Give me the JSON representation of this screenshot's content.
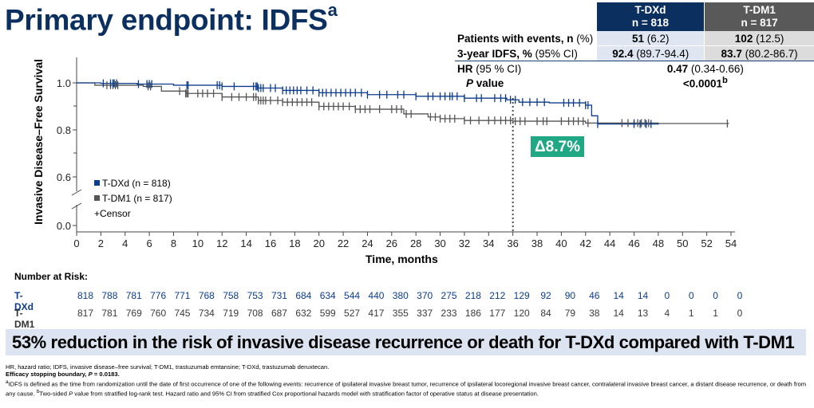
{
  "title": "Primary endpoint: IDFS",
  "title_sup": "a",
  "summary_table": {
    "columns": [
      {
        "name": "T-DXd",
        "n": "n = 818",
        "color": "#0b2f5f"
      },
      {
        "name": "T-DM1",
        "n": "n = 817",
        "color": "#595959"
      }
    ],
    "rows": {
      "events": {
        "label_bold": "Patients with events, n",
        "label_rest": " (%)",
        "dxd_bold": "51",
        "dxd_rest": " (6.2)",
        "dm1_bold": "102",
        "dm1_rest": " (12.5)"
      },
      "idfs3": {
        "label_bold": "3-year IDFS, %",
        "label_rest": " (95% CI)",
        "dxd_bold": "92.4",
        "dxd_rest": " (89.7-94.4)",
        "dm1_bold": "83.7",
        "dm1_rest": " (80.2-86.7)"
      },
      "hr": {
        "label_bold": "HR",
        "label_rest": " (95 % CI)",
        "value_bold": "0.47",
        "value_rest": " (0.34-0.66)"
      },
      "pvalue": {
        "label_italic": "P",
        "label_rest": " value",
        "value": "<0.0001",
        "value_sup": "b"
      }
    }
  },
  "chart_data": {
    "type": "line",
    "title": "",
    "xlabel": "Time, months",
    "ylabel": "Invasive Disease–Free Survival",
    "xlim": [
      0,
      54
    ],
    "ylim": [
      0.5,
      1.1
    ],
    "y_axis_break": true,
    "xticks": [
      0,
      2,
      4,
      6,
      8,
      10,
      12,
      14,
      16,
      18,
      20,
      22,
      24,
      26,
      28,
      30,
      32,
      34,
      36,
      38,
      40,
      42,
      44,
      46,
      48,
      50,
      52,
      54
    ],
    "yticks": [
      "0.0",
      "0.6",
      "0.8",
      "1.0"
    ],
    "legend": {
      "position": "bottom-left",
      "entries": [
        "T-DXd (n = 818)",
        "T-DM1 (n = 817)",
        "+Censor"
      ]
    },
    "series": [
      {
        "name": "T-DXd",
        "color": "#0b3d8c",
        "x": [
          0,
          2,
          5,
          8,
          12,
          15,
          17,
          20,
          24,
          28,
          32,
          35.5,
          36.5,
          39,
          42,
          42.5,
          43,
          48
        ],
        "y": [
          1.0,
          0.998,
          0.995,
          0.99,
          0.985,
          0.978,
          0.968,
          0.958,
          0.95,
          0.943,
          0.935,
          0.928,
          0.918,
          0.915,
          0.905,
          0.86,
          0.825,
          0.823
        ],
        "censor_x": [
          2.2,
          2.8,
          3,
          3.1,
          3.3,
          5.1,
          5.8,
          6,
          6.2,
          9.1,
          9.2,
          11.6,
          11.8,
          12,
          13,
          14.6,
          14.8,
          14.9,
          15,
          15.2,
          15.4,
          16,
          16.4,
          17,
          17.3,
          17.6,
          17.9,
          18.2,
          18.5,
          19,
          19.5,
          20,
          20.3,
          20.6,
          21,
          21.4,
          21.8,
          22.2,
          22.6,
          23,
          23.5,
          24,
          25,
          25.6,
          26.5,
          27,
          28,
          29,
          29.4,
          30,
          30.4,
          30.8,
          31,
          31.4,
          32,
          33,
          33.4,
          34.5,
          35,
          35.4,
          35.8,
          36.2,
          36.8,
          37.4,
          38,
          38.6,
          40.2,
          40.6,
          41,
          41.5,
          42,
          42.2,
          43,
          46,
          46.5,
          47,
          47.4
        ],
        "risk": [
          818,
          788,
          781,
          776,
          771,
          768,
          758,
          753,
          731,
          684,
          634,
          544,
          440,
          380,
          370,
          275,
          218,
          212,
          129,
          92,
          90,
          46,
          14,
          14,
          0,
          0,
          0,
          0
        ]
      },
      {
        "name": "T-DM1",
        "color": "#555555",
        "x": [
          0,
          1.5,
          5.5,
          7,
          9,
          12,
          15,
          17,
          20,
          23,
          27,
          29,
          30,
          32,
          36,
          42,
          48,
          53.8
        ],
        "y": [
          1.0,
          0.99,
          0.985,
          0.965,
          0.955,
          0.94,
          0.925,
          0.918,
          0.9,
          0.888,
          0.868,
          0.855,
          0.848,
          0.84,
          0.837,
          0.829,
          0.827,
          0.826
        ],
        "censor_x": [
          2.5,
          2.8,
          3,
          3.2,
          3.4,
          5.9,
          6.1,
          8.5,
          9,
          9.1,
          9.2,
          10,
          10.4,
          10.8,
          11.3,
          12,
          12.8,
          13.4,
          14,
          14.6,
          14.8,
          15,
          15.2,
          15.4,
          15.6,
          16,
          16.6,
          17,
          17.4,
          17.8,
          18.2,
          18.6,
          19,
          19.4,
          20,
          20.4,
          20.8,
          21.2,
          21.6,
          22,
          22.5,
          23,
          23.4,
          23.8,
          24.2,
          25,
          26,
          26.4,
          26.8,
          27.2,
          27.6,
          29.2,
          29.6,
          30,
          30.4,
          30.8,
          31.2,
          32,
          32.5,
          33.2,
          34,
          34.5,
          35,
          35.4,
          35.8,
          36.2,
          36.6,
          37,
          38,
          38.5,
          38.8,
          40,
          40.6,
          41,
          41.4,
          41.8,
          42.2,
          45,
          45.5,
          46,
          46.3,
          46.6,
          46.9,
          47.2,
          53.7
        ],
        "risk": [
          817,
          781,
          769,
          760,
          745,
          734,
          719,
          708,
          687,
          632,
          599,
          527,
          417,
          355,
          337,
          233,
          186,
          177,
          120,
          84,
          79,
          38,
          14,
          13,
          4,
          1,
          1,
          0
        ]
      }
    ],
    "annotations": [
      {
        "text": "Δ8.7%",
        "x": 36,
        "note": "difference at 3 years, dotted vertical line at 36 months",
        "color": "#20a783"
      }
    ]
  },
  "number_at_risk": {
    "title": "Number at Risk:",
    "dxd_label": "T-DXd",
    "dm1_label": "T-DM1"
  },
  "banner": "53% reduction in the risk of invasive disease recurrence or death for T-DXd compared with T-DM1",
  "footnotes": {
    "abbrev": "HR, hazard ratio; IDFS, invasive disease–free survival; T-DM1, trastuzumab emtansine; T-DXd, trastuzumab deruxtecan.",
    "efficacy_prefix": "Efficacy stopping boundary, ",
    "efficacy_p": "P",
    "efficacy_rest": " = 0.0183.",
    "note_a_sup": "a",
    "note_a": "IDFS is defined as the time from randomization until the date of first occurrence of one of the following events: recurrence of ipsilateral invasive breast tumor, recurrence of ipsilateral locoregional invasive breast cancer, contralateral invasive breast cancer, a distant disease recurrence, or death from any cause. ",
    "note_b_sup": "b",
    "note_b_pre": "Two-sided ",
    "note_b_p": "P",
    "note_b_rest": " value from stratified log-rank test. Hazard ratio and 95% CI from stratified Cox proportional hazards model with stratification factor of operative status at disease presentation."
  }
}
